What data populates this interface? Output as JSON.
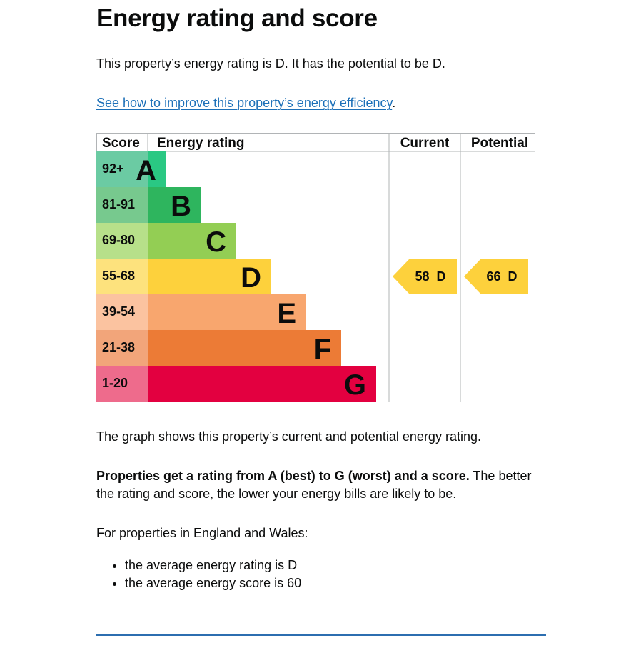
{
  "heading": "Energy rating and score",
  "intro": "This property’s energy rating is D. It has the potential to be D.",
  "improve_link": {
    "text": "See how to improve this property’s energy efficiency",
    "suffix": "."
  },
  "chart_data": {
    "type": "table",
    "headers": {
      "score": "Score",
      "energy_rating": "Energy rating",
      "current": "Current",
      "potential": "Potential"
    },
    "bands": [
      {
        "score": "92+",
        "letter": "A",
        "color": "#2ac883",
        "score_color": "#6bcba3",
        "bar_fraction": 0.2
      },
      {
        "score": "81-91",
        "letter": "B",
        "color": "#2eb55e",
        "score_color": "#77c98e",
        "bar_fraction": 0.3
      },
      {
        "score": "69-80",
        "letter": "C",
        "color": "#93ce54",
        "score_color": "#b7e08a",
        "bar_fraction": 0.4
      },
      {
        "score": "55-68",
        "letter": "D",
        "color": "#fdd13c",
        "score_color": "#fde27d",
        "bar_fraction": 0.5
      },
      {
        "score": "39-54",
        "letter": "E",
        "color": "#f8a66e",
        "score_color": "#fbc3a0",
        "bar_fraction": 0.6
      },
      {
        "score": "21-38",
        "letter": "F",
        "color": "#ec7b36",
        "score_color": "#f2a57a",
        "bar_fraction": 0.7
      },
      {
        "score": "1-20",
        "letter": "G",
        "color": "#e30040",
        "score_color": "#ee6b8c",
        "bar_fraction": 0.8
      }
    ],
    "current": {
      "score": 58,
      "letter": "D",
      "label": "58  D",
      "color": "#fdd13c"
    },
    "potential": {
      "score": 66,
      "letter": "D",
      "label": "66  D",
      "color": "#fdd13c"
    }
  },
  "graph_note": "The graph shows this property’s current and potential energy rating.",
  "ratings_note": {
    "bold": "Properties get a rating from A (best) to G (worst) and a score.",
    "rest": " The better the rating and score, the lower your energy bills are likely to be."
  },
  "england_wales": "For properties in England and Wales:",
  "bullets": [
    "the average energy rating is D",
    "the average energy score is 60"
  ]
}
